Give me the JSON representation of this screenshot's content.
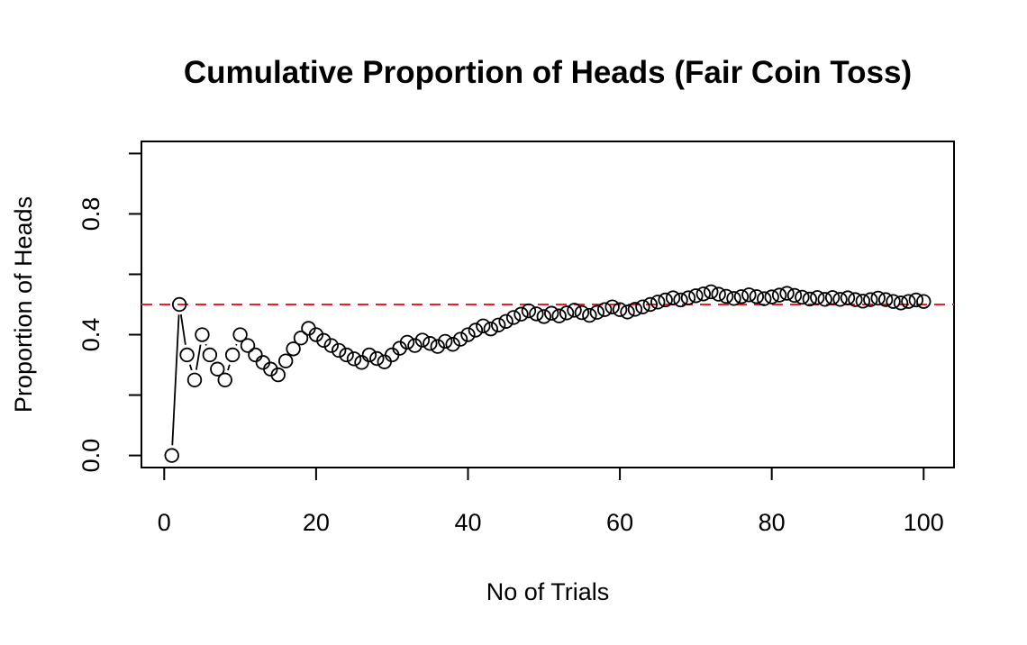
{
  "chart_data": {
    "type": "scatter",
    "title": "Cumulative Proportion of Heads (Fair Coin Toss)",
    "xlabel": "No of Trials",
    "ylabel": "Proportion of Heads",
    "xlim": [
      -3,
      104
    ],
    "ylim": [
      -0.04,
      1.04
    ],
    "x_ticks": [
      0,
      20,
      40,
      60,
      80,
      100
    ],
    "x_tick_labels": [
      "0",
      "20",
      "40",
      "60",
      "80",
      "100"
    ],
    "y_ticks": [
      0.0,
      0.2,
      0.4,
      0.6,
      0.8,
      1.0
    ],
    "y_tick_labels": [
      "0.0",
      "",
      "0.4",
      "",
      "0.8",
      ""
    ],
    "reference_line": {
      "y": 0.5,
      "color": "#e8202a",
      "style": "dashed"
    },
    "grid": false,
    "point_style": "open-circle",
    "x": [
      1,
      2,
      3,
      4,
      5,
      6,
      7,
      8,
      9,
      10,
      11,
      12,
      13,
      14,
      15,
      16,
      17,
      18,
      19,
      20,
      21,
      22,
      23,
      24,
      25,
      26,
      27,
      28,
      29,
      30,
      31,
      32,
      33,
      34,
      35,
      36,
      37,
      38,
      39,
      40,
      41,
      42,
      43,
      44,
      45,
      46,
      47,
      48,
      49,
      50,
      51,
      52,
      53,
      54,
      55,
      56,
      57,
      58,
      59,
      60,
      61,
      62,
      63,
      64,
      65,
      66,
      67,
      68,
      69,
      70,
      71,
      72,
      73,
      74,
      75,
      76,
      77,
      78,
      79,
      80,
      81,
      82,
      83,
      84,
      85,
      86,
      87,
      88,
      89,
      90,
      91,
      92,
      93,
      94,
      95,
      96,
      97,
      98,
      99,
      100
    ],
    "y": [
      0.0,
      0.5,
      0.333,
      0.25,
      0.4,
      0.333,
      0.286,
      0.25,
      0.333,
      0.4,
      0.364,
      0.333,
      0.308,
      0.286,
      0.267,
      0.313,
      0.353,
      0.389,
      0.421,
      0.4,
      0.381,
      0.364,
      0.348,
      0.333,
      0.32,
      0.308,
      0.333,
      0.321,
      0.31,
      0.333,
      0.355,
      0.375,
      0.364,
      0.382,
      0.371,
      0.361,
      0.378,
      0.368,
      0.385,
      0.4,
      0.415,
      0.429,
      0.419,
      0.432,
      0.444,
      0.457,
      0.468,
      0.479,
      0.469,
      0.46,
      0.471,
      0.462,
      0.472,
      0.481,
      0.473,
      0.464,
      0.474,
      0.483,
      0.492,
      0.483,
      0.475,
      0.484,
      0.492,
      0.5,
      0.508,
      0.515,
      0.522,
      0.515,
      0.522,
      0.529,
      0.535,
      0.542,
      0.534,
      0.527,
      0.52,
      0.526,
      0.532,
      0.526,
      0.519,
      0.525,
      0.531,
      0.537,
      0.53,
      0.524,
      0.518,
      0.523,
      0.517,
      0.523,
      0.517,
      0.522,
      0.516,
      0.511,
      0.516,
      0.521,
      0.516,
      0.51,
      0.505,
      0.51,
      0.515,
      0.51
    ]
  }
}
